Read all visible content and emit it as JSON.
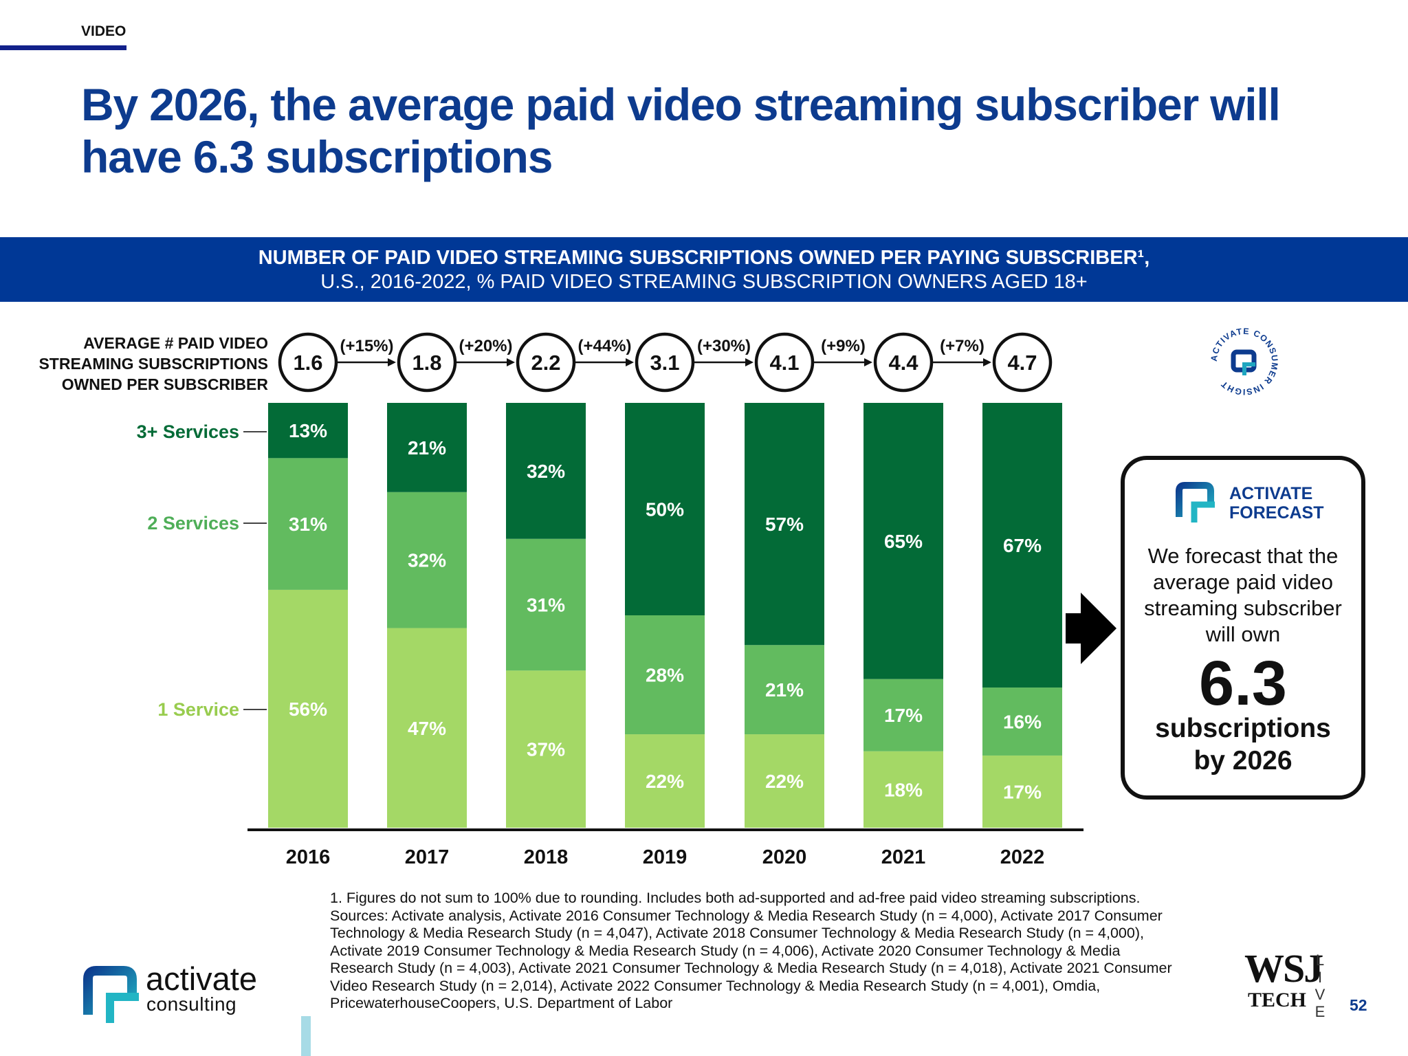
{
  "page": {
    "section": "VIDEO",
    "headline": "By 2026, the average paid video streaming subscriber will have 6.3 subscriptions",
    "page_number": "52"
  },
  "colors": {
    "brand_blue": "#0d3b8e",
    "banner_blue": "#003896",
    "three_plus": "#036b37",
    "two": "#62bb5f",
    "one": "#a4d866"
  },
  "chart_data": {
    "type": "bar",
    "stacked": true,
    "title": "NUMBER OF PAID VIDEO STREAMING SUBSCRIPTIONS OWNED PER PAYING SUBSCRIBER¹,",
    "subtitle": "U.S., 2016-2022, % PAID VIDEO STREAMING SUBSCRIPTION OWNERS AGED 18+",
    "categories": [
      "2016",
      "2017",
      "2018",
      "2019",
      "2020",
      "2021",
      "2022"
    ],
    "series": [
      {
        "name": "1 Service",
        "values": [
          56,
          47,
          37,
          22,
          22,
          18,
          17
        ],
        "labels": [
          "56%",
          "47%",
          "37%",
          "22%",
          "22%",
          "18%",
          "17%"
        ],
        "color": "#a4d866"
      },
      {
        "name": "2 Services",
        "values": [
          31,
          32,
          31,
          28,
          21,
          17,
          16
        ],
        "labels": [
          "31%",
          "32%",
          "31%",
          "28%",
          "21%",
          "17%",
          "16%"
        ],
        "color": "#62bb5f"
      },
      {
        "name": "3+ Services",
        "values": [
          13,
          21,
          32,
          50,
          57,
          65,
          67
        ],
        "labels": [
          "13%",
          "21%",
          "32%",
          "50%",
          "57%",
          "65%",
          "67%"
        ],
        "color": "#036b37"
      }
    ],
    "average_label": [
      "AVERAGE # PAID VIDEO",
      "STREAMING SUBSCRIPTIONS",
      "OWNED PER SUBSCRIBER"
    ],
    "averages": [
      "1.6",
      "1.8",
      "2.2",
      "3.1",
      "4.1",
      "4.4",
      "4.7"
    ],
    "growth": [
      "(+15%)",
      "(+20%)",
      "(+44%)",
      "(+30%)",
      "(+9%)",
      "(+7%)"
    ],
    "ylim": [
      0,
      100
    ],
    "legend": "left",
    "grid": false
  },
  "forecast": {
    "brand_line1": "ACTIVATE",
    "brand_line2": "FORECAST",
    "text_lines": [
      "We forecast that the",
      "average paid video",
      "streaming subscriber",
      "will own"
    ],
    "number": "6.3",
    "suffix_lines": [
      "subscriptions",
      "by 2026"
    ]
  },
  "badge": {
    "text": "ACTIVATE CONSUMER INSIGHT"
  },
  "footnote": [
    "1. Figures do not sum to 100% due to rounding. Includes both ad-supported and ad-free paid video streaming subscriptions.",
    "Sources: Activate analysis, Activate 2016 Consumer Technology & Media Research Study (n = 4,000), Activate 2017 Consumer",
    "Technology & Media Research Study (n = 4,047), Activate 2018 Consumer Technology & Media Research Study (n = 4,000),",
    "Activate 2019 Consumer Technology & Media Research Study (n = 4,006), Activate 2020 Consumer Technology & Media",
    "Research Study (n = 4,003), Activate 2021 Consumer Technology & Media Research Study (n = 4,018), Activate 2021 Consumer",
    "Video Research Study (n = 2,014), Activate 2022 Consumer Technology & Media Research Study (n = 4,001), Omdia,",
    "PricewaterhouseCoopers, U.S. Department of Labor"
  ],
  "logos": {
    "company_word": "activate",
    "company_sub": "consulting",
    "partner_word": "WSJ",
    "partner_sub": "TECH",
    "partner_live": [
      "L",
      "I",
      "V",
      "E"
    ]
  }
}
